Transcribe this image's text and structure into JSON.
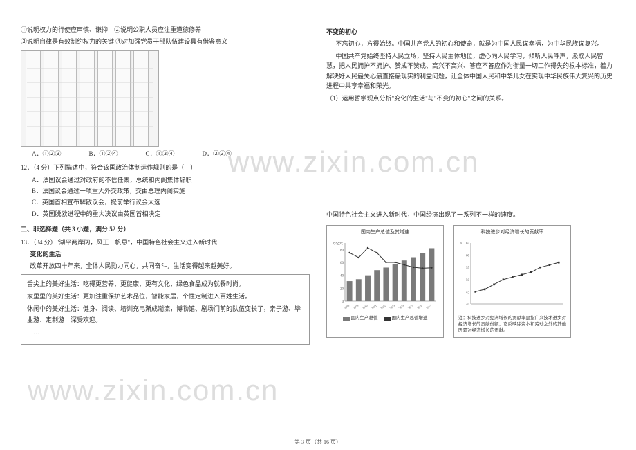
{
  "left": {
    "stmt1": "①说明权力的行使应审慎、谦抑　②说明公职人员应注重道德修养",
    "stmt2": "③说明自律是有效制约权力的关键 ④对加强党员干部队伍建设具有借鉴意义",
    "q11_opts": {
      "a": "A．①②③",
      "b": "B．①②④",
      "c": "C．①③④",
      "d": "D．②③④"
    },
    "q12_stem": "12．（4 分）下列描述中，符合该国政治体制运作规则的是（　）",
    "q12": {
      "a": "A．法国议会通过对政府的不信任案，总统和内阁集体辞职",
      "b": "B．法国议会通过一项重大外交政策，交由总理内阁实施",
      "c": "C．英国首相宣布解散议会，提前举行议会大选",
      "d": "D．英国脱欧进程中的重大决议由英国首相决定"
    },
    "section2": "二、非选择题（共 3 小题，满分 52 分）",
    "q13_stem": "13．（34 分）\"湖平两岸阔，风正一帆悬\"，中国特色社会主义进入新时代",
    "sub_change": "变化的生活",
    "change_intro": "改革开放四十年来，全体人民勠力同心，共同奋斗，生活变得越来越美好。",
    "box1": "舌尖上的美好生活：吃得更营养、更健康、更有文化，绿色食品成为就餐时尚。",
    "box2": "家里里的美好生活：更加注重保护艺术品位，智能家居，个性定制进入百姓生活。",
    "box3": "休闲中的美好生活：健身、阅读、培训充电渐成潮流，博物馆、剧场门前的队伍变长了，亲子游、毕业游、定制游　深受欢迎。",
    "box_end": "……"
  },
  "right": {
    "sub_heart": "不变的初心",
    "p1": "不忘初心，方得始终。中国共产党人的初心和使命，就是为中国人民谋幸福，为中华民族谋复兴。",
    "p2": "中国共产党始终坚持人民立场，坚持人民主体地位，虚心向人民学习，倾听人民呼声，汲取人民智慧，把人民拥护不拥护、赞成不赞成、高兴不高兴、答应不答应作为衡量一切工作得失的根本标准，着力解决好人民最关心最直接最现实的利益问题，让全体中国人民和中华儿女在实现中华民族伟大复兴的历史进程中共享幸福和荣光。",
    "q1": "（1）运用哲学观点分析\"变化的生活\"与\"不变的初心\"之间的关系。",
    "para_new_era": "中国特色社会主义进入新时代，中国经济出现了一系列不一样的速度。",
    "chart1": {
      "type": "bar+line",
      "title": "国内生产总值及其增速",
      "y_left_label": "万亿元",
      "years": [
        "2008",
        "2009",
        "2010",
        "2011",
        "2012",
        "2013",
        "2014",
        "2015",
        "2016",
        "2017"
      ],
      "bars": [
        31,
        34,
        40,
        48,
        52,
        57,
        63,
        68,
        74,
        82
      ],
      "bar_max": 90,
      "line": [
        10,
        9,
        11,
        10,
        8,
        8,
        7.5,
        7,
        6.8,
        6.9
      ],
      "line_max": 12,
      "bar_color": "#7a7a7a",
      "line_color": "#333333",
      "legend1": "国内生产总值",
      "legend2": "国内生产总值增速"
    },
    "chart2": {
      "type": "line",
      "title": "科技进步对经济增长的贡献率",
      "y_label": "%",
      "series": [
        45,
        46,
        48,
        50,
        51,
        52,
        53,
        55,
        56,
        57
      ],
      "y_min": 40,
      "y_max": 65,
      "line_color": "#333333",
      "caption": "注：科技进步对经济增长的贡献率是指广义技术进步对经济增长的贡献份额，它反映除资本和劳动之外的其他因素对经济增长的贡献。"
    }
  },
  "watermarks": {
    "w1": "www.zixin.com.cn",
    "w2": "www.zixin.com.cn"
  },
  "footer": "第 3 页（共 16 页）"
}
